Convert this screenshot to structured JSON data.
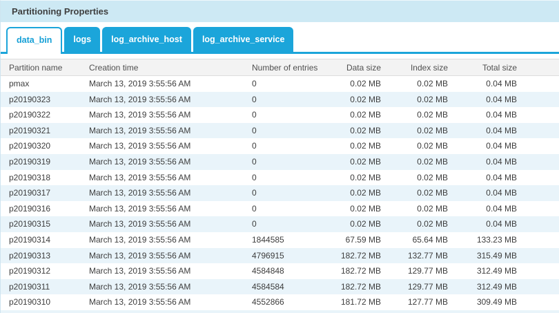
{
  "panel": {
    "title": "Partitioning Properties"
  },
  "tabs": [
    {
      "label": "data_bin",
      "active": true
    },
    {
      "label": "logs",
      "active": false
    },
    {
      "label": "log_archive_host",
      "active": false
    },
    {
      "label": "log_archive_service",
      "active": false
    }
  ],
  "table": {
    "columns": [
      "Partition name",
      "Creation time",
      "Number of entries",
      "Data size",
      "Index size",
      "Total size"
    ],
    "rows": [
      [
        "pmax",
        "March 13, 2019 3:55:56 AM",
        "0",
        "0.02 MB",
        "0.02 MB",
        "0.04 MB"
      ],
      [
        "p20190323",
        "March 13, 2019 3:55:56 AM",
        "0",
        "0.02 MB",
        "0.02 MB",
        "0.04 MB"
      ],
      [
        "p20190322",
        "March 13, 2019 3:55:56 AM",
        "0",
        "0.02 MB",
        "0.02 MB",
        "0.04 MB"
      ],
      [
        "p20190321",
        "March 13, 2019 3:55:56 AM",
        "0",
        "0.02 MB",
        "0.02 MB",
        "0.04 MB"
      ],
      [
        "p20190320",
        "March 13, 2019 3:55:56 AM",
        "0",
        "0.02 MB",
        "0.02 MB",
        "0.04 MB"
      ],
      [
        "p20190319",
        "March 13, 2019 3:55:56 AM",
        "0",
        "0.02 MB",
        "0.02 MB",
        "0.04 MB"
      ],
      [
        "p20190318",
        "March 13, 2019 3:55:56 AM",
        "0",
        "0.02 MB",
        "0.02 MB",
        "0.04 MB"
      ],
      [
        "p20190317",
        "March 13, 2019 3:55:56 AM",
        "0",
        "0.02 MB",
        "0.02 MB",
        "0.04 MB"
      ],
      [
        "p20190316",
        "March 13, 2019 3:55:56 AM",
        "0",
        "0.02 MB",
        "0.02 MB",
        "0.04 MB"
      ],
      [
        "p20190315",
        "March 13, 2019 3:55:56 AM",
        "0",
        "0.02 MB",
        "0.02 MB",
        "0.04 MB"
      ],
      [
        "p20190314",
        "March 13, 2019 3:55:56 AM",
        "1844585",
        "67.59 MB",
        "65.64 MB",
        "133.23 MB"
      ],
      [
        "p20190313",
        "March 13, 2019 3:55:56 AM",
        "4796915",
        "182.72 MB",
        "132.77 MB",
        "315.49 MB"
      ],
      [
        "p20190312",
        "March 13, 2019 3:55:56 AM",
        "4584848",
        "182.72 MB",
        "129.77 MB",
        "312.49 MB"
      ],
      [
        "p20190311",
        "March 13, 2019 3:55:56 AM",
        "4584584",
        "182.72 MB",
        "129.77 MB",
        "312.49 MB"
      ],
      [
        "p20190310",
        "March 13, 2019 3:55:56 AM",
        "4552866",
        "181.72 MB",
        "127.77 MB",
        "309.49 MB"
      ]
    ]
  },
  "colors": {
    "tabBlue": "#1ba5da",
    "activeTabText": "#149fd6",
    "headerBarBg": "#cde9f4",
    "headerRowBg": "#f3f3f3",
    "altRowBg": "#e9f4fa",
    "bodyText": "#3d3d3d",
    "headerText": "#4f4f4f"
  }
}
